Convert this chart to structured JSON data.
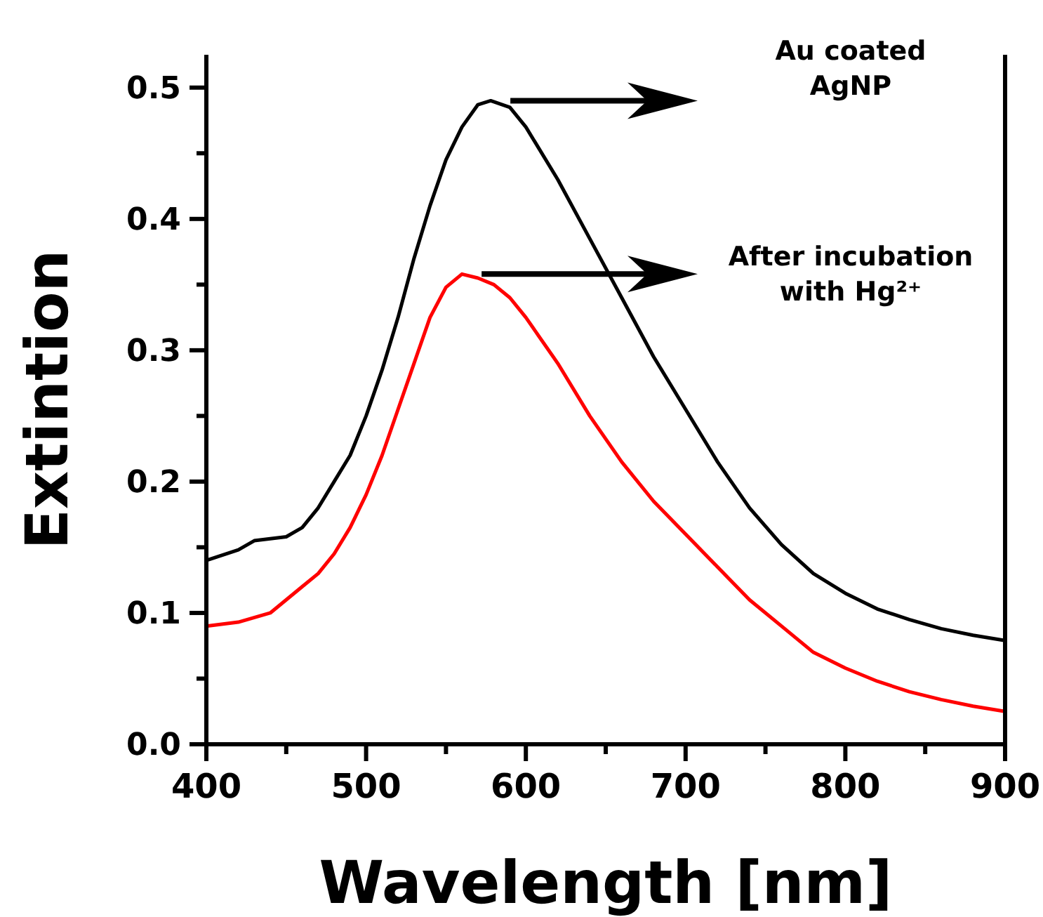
{
  "chart_data": {
    "type": "line",
    "xlabel": "Wavelength [nm]",
    "ylabel": "Extintion",
    "xlim": [
      400,
      900
    ],
    "ylim": [
      0,
      0.525
    ],
    "xticks": [
      400,
      {
        "value": 450,
        "label": null
      },
      500,
      {
        "value": 550,
        "label": null
      },
      600,
      {
        "value": 650,
        "label": null
      },
      700,
      {
        "value": 750,
        "label": null
      },
      800,
      {
        "value": 850,
        "label": null
      },
      900
    ],
    "yticks": [
      {
        "value": 0,
        "label": "0.0"
      },
      {
        "value": 0.05,
        "label": null
      },
      0.1,
      {
        "value": 0.15,
        "label": null
      },
      0.2,
      {
        "value": 0.25,
        "label": null
      },
      0.3,
      {
        "value": 0.35,
        "label": null
      },
      0.4,
      {
        "value": 0.45,
        "label": null
      },
      0.5
    ],
    "grid": false,
    "line_style": "solid",
    "marker": "none",
    "series": [
      {
        "color": "#000000",
        "x": [
          400,
          420,
          430,
          450,
          460,
          470,
          480,
          490,
          500,
          510,
          520,
          530,
          540,
          550,
          560,
          570,
          578,
          590,
          600,
          620,
          640,
          660,
          680,
          700,
          720,
          740,
          760,
          780,
          800,
          820,
          840,
          860,
          880,
          900
        ],
        "values": [
          0.14,
          0.148,
          0.155,
          0.158,
          0.165,
          0.18,
          0.2,
          0.22,
          0.25,
          0.285,
          0.325,
          0.37,
          0.41,
          0.445,
          0.47,
          0.487,
          0.49,
          0.485,
          0.47,
          0.43,
          0.385,
          0.34,
          0.295,
          0.255,
          0.215,
          0.18,
          0.152,
          0.13,
          0.115,
          0.103,
          0.095,
          0.088,
          0.083,
          0.079
        ]
      },
      {
        "color": "#ff0000",
        "x": [
          400,
          420,
          440,
          450,
          460,
          470,
          480,
          490,
          500,
          510,
          520,
          530,
          540,
          550,
          560,
          570,
          580,
          590,
          600,
          620,
          640,
          660,
          680,
          700,
          720,
          740,
          760,
          780,
          800,
          820,
          840,
          860,
          880,
          900
        ],
        "values": [
          0.09,
          0.093,
          0.1,
          0.11,
          0.12,
          0.13,
          0.145,
          0.165,
          0.19,
          0.22,
          0.255,
          0.29,
          0.325,
          0.348,
          0.358,
          0.355,
          0.35,
          0.34,
          0.325,
          0.29,
          0.25,
          0.215,
          0.185,
          0.16,
          0.135,
          0.11,
          0.09,
          0.07,
          0.058,
          0.048,
          0.04,
          0.034,
          0.029,
          0.025
        ]
      }
    ],
    "annotations": [
      "Au coated\nAgNP",
      "After incubation\nwith Hg²⁺"
    ]
  }
}
